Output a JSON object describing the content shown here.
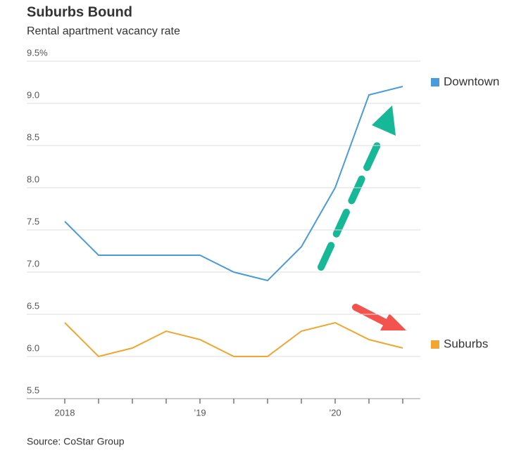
{
  "chart_data": {
    "type": "line",
    "title": "Suburbs Bound",
    "subtitle": "Rental apartment vacancy rate",
    "source": "Source: CoStar Group",
    "categories": [
      "2018",
      null,
      null,
      null,
      "’19",
      null,
      null,
      null,
      "’20",
      null,
      null
    ],
    "series": [
      {
        "name": "Downtown",
        "color": "#4a9bd9",
        "values": [
          7.6,
          7.2,
          7.2,
          7.2,
          7.2,
          7.0,
          6.9,
          7.3,
          8.0,
          9.1,
          9.2
        ]
      },
      {
        "name": "Suburbs",
        "color": "#f0a630",
        "values": [
          6.4,
          6.0,
          6.1,
          6.3,
          6.2,
          6.0,
          6.0,
          6.3,
          6.4,
          6.2,
          6.1
        ]
      }
    ],
    "ylim": [
      5.5,
      9.5
    ],
    "yticks": [
      5.5,
      {
        "value": 6,
        "label": "6.0"
      },
      6.5,
      {
        "value": 7,
        "label": "7.0"
      },
      7.5,
      {
        "value": 8,
        "label": "8.0"
      },
      8.5,
      {
        "value": 9,
        "label": "9.0"
      },
      {
        "value": 9.5,
        "label": "9.5%"
      }
    ],
    "grid": true,
    "legend": "right"
  }
}
